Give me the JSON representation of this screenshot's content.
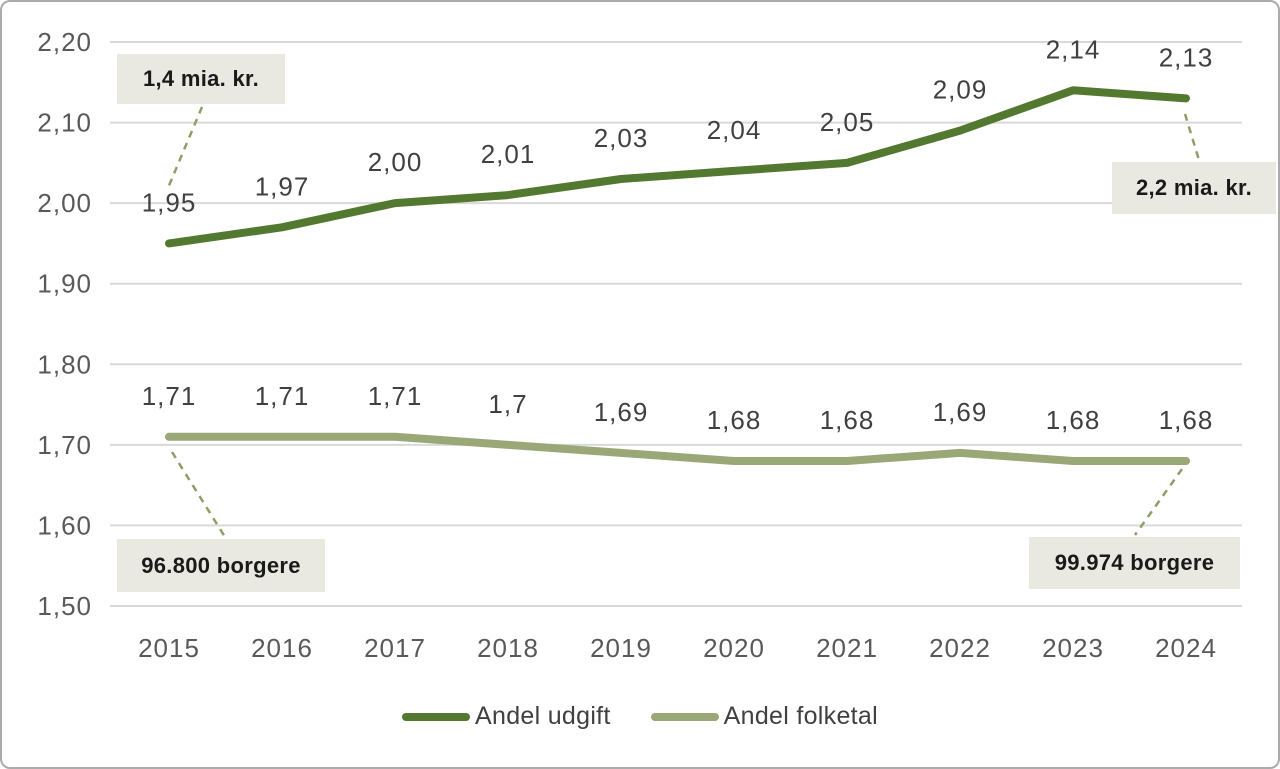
{
  "chart_data": {
    "type": "line",
    "categories": [
      "2015",
      "2016",
      "2017",
      "2018",
      "2019",
      "2020",
      "2021",
      "2022",
      "2023",
      "2024"
    ],
    "series": [
      {
        "name": "Andel udgift",
        "values": [
          1.95,
          1.97,
          2.0,
          2.01,
          2.03,
          2.04,
          2.05,
          2.09,
          2.14,
          2.13
        ],
        "labels": [
          "1,95",
          "1,97",
          "2,00",
          "2,01",
          "2,03",
          "2,04",
          "2,05",
          "2,09",
          "2,14",
          "2,13"
        ],
        "color": "#53782f"
      },
      {
        "name": "Andel folketal",
        "values": [
          1.71,
          1.71,
          1.71,
          1.7,
          1.69,
          1.68,
          1.68,
          1.69,
          1.68,
          1.68
        ],
        "labels": [
          "1,71",
          "1,71",
          "1,71",
          "1,7",
          "1,69",
          "1,68",
          "1,68",
          "1,69",
          "1,68",
          "1,68"
        ],
        "color": "#9aa877"
      }
    ],
    "y_axis": {
      "min": 1.5,
      "max": 2.2,
      "step": 0.1,
      "tick_labels_top_to_bottom": [
        "2,20",
        "2,10",
        "2,00",
        "1,90",
        "1,80",
        "1,70",
        "1,60",
        "1,50"
      ]
    },
    "grid": true,
    "legend_position": "bottom",
    "annotations": [
      {
        "text": "1,4 mia. kr."
      },
      {
        "text": "2,2 mia. kr."
      },
      {
        "text": "96.800 borgere"
      },
      {
        "text": "99.974 borgere"
      }
    ],
    "style": {
      "annotation_bg": "#e9e9e1",
      "leader_color": "#8f9e68",
      "gridline_color": "#d9d9d9",
      "axis_text_color": "#595959",
      "data_label_color": "#404040",
      "legend_text_color": "#404040"
    }
  }
}
